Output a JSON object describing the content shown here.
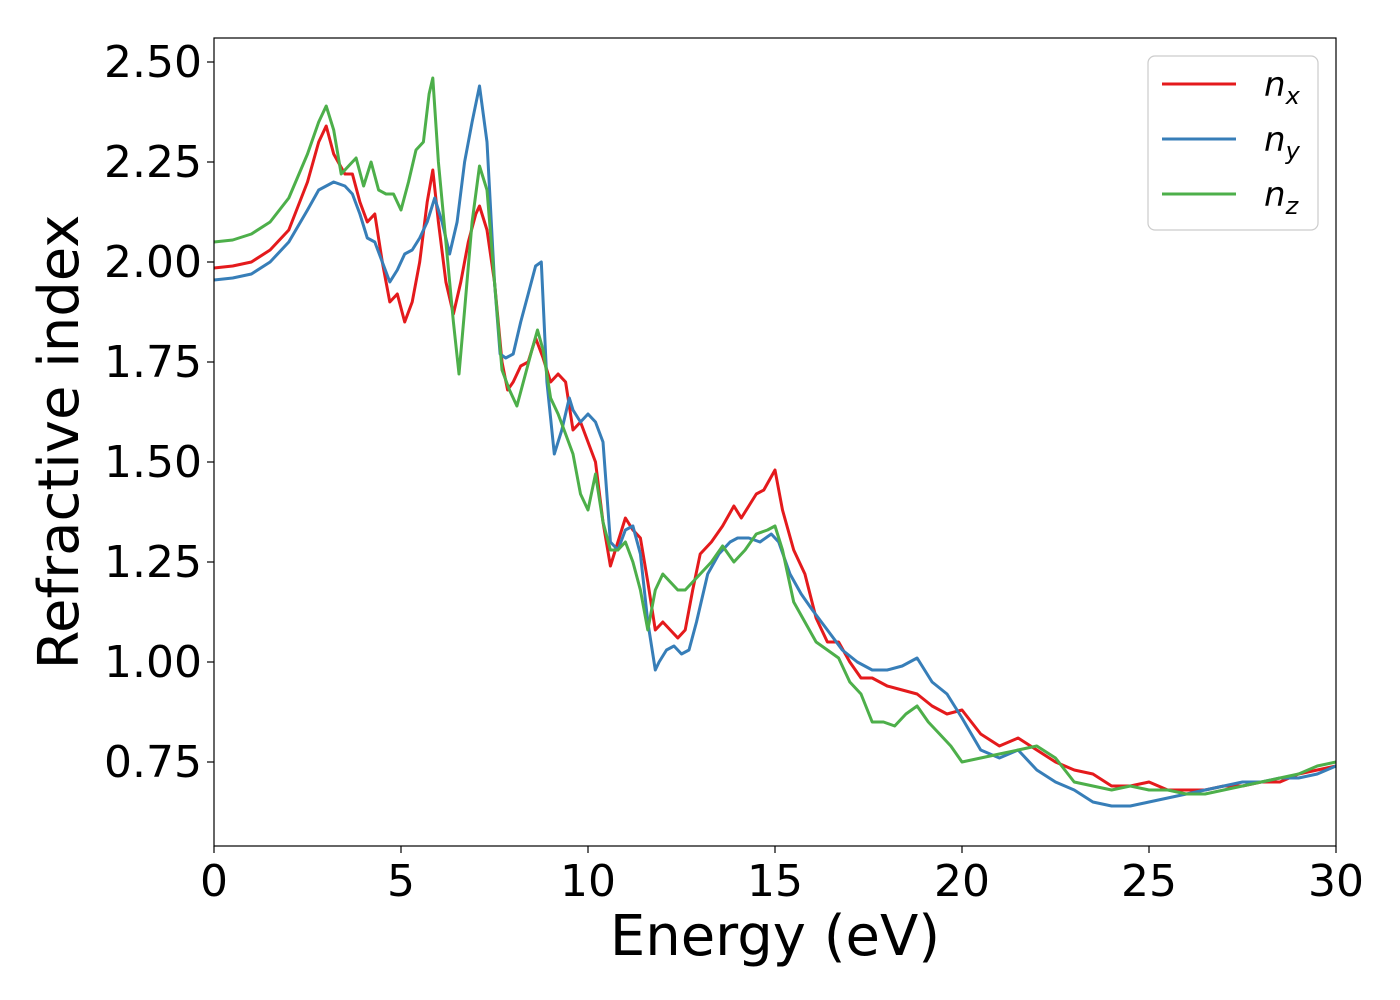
{
  "chart_data": {
    "type": "line",
    "xlabel": "Energy (eV)",
    "ylabel": "Refractive index",
    "xlim": [
      0,
      30
    ],
    "ylim": [
      0.54,
      2.56
    ],
    "xticks": [
      0,
      5,
      10,
      15,
      20,
      25,
      30
    ],
    "xtick_labels": [
      "0",
      "5",
      "10",
      "15",
      "20",
      "25",
      "30"
    ],
    "yticks": [
      0.75,
      1.0,
      1.25,
      1.5,
      1.75,
      2.0,
      2.25,
      2.5
    ],
    "ytick_labels": [
      "0.75",
      "1.00",
      "1.25",
      "1.50",
      "1.75",
      "2.00",
      "2.25",
      "2.50"
    ],
    "grid": false,
    "legend_position": "top-right",
    "series": [
      {
        "name": "n",
        "sub": "x",
        "color": "#e41a1c",
        "x": [
          0,
          0.5,
          1,
          1.5,
          2,
          2.5,
          2.8,
          3.0,
          3.2,
          3.5,
          3.7,
          3.9,
          4.1,
          4.3,
          4.5,
          4.7,
          4.9,
          5.1,
          5.3,
          5.5,
          5.7,
          5.85,
          6.0,
          6.2,
          6.4,
          6.6,
          6.8,
          7.0,
          7.1,
          7.3,
          7.5,
          7.7,
          7.85,
          8.0,
          8.2,
          8.4,
          8.6,
          8.8,
          9.0,
          9.2,
          9.4,
          9.6,
          9.8,
          10.0,
          10.2,
          10.4,
          10.6,
          10.8,
          11.0,
          11.2,
          11.4,
          11.6,
          11.8,
          12.0,
          12.2,
          12.4,
          12.6,
          12.8,
          13.0,
          13.3,
          13.6,
          13.9,
          14.1,
          14.3,
          14.5,
          14.7,
          15.0,
          15.2,
          15.5,
          15.8,
          16.1,
          16.4,
          16.7,
          17.0,
          17.3,
          17.6,
          18.0,
          18.4,
          18.8,
          19.2,
          19.6,
          20.0,
          20.5,
          21.0,
          21.5,
          22.0,
          22.5,
          23.0,
          23.5,
          24.0,
          24.5,
          25.0,
          25.5,
          26.0,
          26.5,
          27.0,
          27.5,
          28.0,
          28.5,
          29.0,
          29.5,
          30.0
        ],
        "y": [
          1.985,
          1.99,
          2.0,
          2.03,
          2.08,
          2.2,
          2.3,
          2.34,
          2.27,
          2.22,
          2.22,
          2.15,
          2.1,
          2.12,
          2.0,
          1.9,
          1.92,
          1.85,
          1.9,
          2.0,
          2.15,
          2.23,
          2.1,
          1.95,
          1.87,
          1.95,
          2.05,
          2.12,
          2.14,
          2.08,
          1.95,
          1.75,
          1.68,
          1.7,
          1.74,
          1.75,
          1.81,
          1.76,
          1.7,
          1.72,
          1.7,
          1.58,
          1.6,
          1.55,
          1.5,
          1.35,
          1.24,
          1.3,
          1.36,
          1.33,
          1.31,
          1.2,
          1.08,
          1.1,
          1.08,
          1.06,
          1.08,
          1.18,
          1.27,
          1.3,
          1.34,
          1.39,
          1.36,
          1.39,
          1.42,
          1.43,
          1.48,
          1.38,
          1.28,
          1.22,
          1.11,
          1.05,
          1.05,
          1.0,
          0.96,
          0.96,
          0.94,
          0.93,
          0.92,
          0.89,
          0.87,
          0.88,
          0.82,
          0.79,
          0.81,
          0.78,
          0.75,
          0.73,
          0.72,
          0.69,
          0.69,
          0.7,
          0.68,
          0.68,
          0.68,
          0.69,
          0.69,
          0.7,
          0.7,
          0.72,
          0.73,
          0.74
        ]
      },
      {
        "name": "n",
        "sub": "y",
        "color": "#377eb8",
        "x": [
          0,
          0.5,
          1,
          1.5,
          2,
          2.5,
          2.8,
          3.0,
          3.2,
          3.5,
          3.7,
          3.9,
          4.1,
          4.3,
          4.5,
          4.7,
          4.9,
          5.1,
          5.3,
          5.5,
          5.7,
          5.9,
          6.1,
          6.3,
          6.5,
          6.7,
          6.9,
          7.1,
          7.3,
          7.5,
          7.65,
          7.8,
          8.0,
          8.2,
          8.4,
          8.6,
          8.75,
          8.9,
          9.1,
          9.3,
          9.5,
          9.6,
          9.8,
          10.0,
          10.2,
          10.4,
          10.6,
          10.8,
          11.0,
          11.2,
          11.4,
          11.6,
          11.8,
          11.9,
          12.1,
          12.3,
          12.5,
          12.7,
          12.9,
          13.2,
          13.5,
          13.8,
          14.0,
          14.3,
          14.6,
          14.9,
          15.1,
          15.4,
          15.7,
          16.0,
          16.4,
          16.8,
          17.2,
          17.6,
          18.0,
          18.4,
          18.8,
          19.2,
          19.6,
          20.0,
          20.5,
          21.0,
          21.5,
          22.0,
          22.5,
          23.0,
          23.5,
          24.0,
          24.5,
          25.0,
          25.5,
          26.0,
          26.5,
          27.0,
          27.5,
          28.0,
          28.5,
          29.0,
          29.5,
          30.0
        ],
        "y": [
          1.955,
          1.96,
          1.97,
          2.0,
          2.05,
          2.13,
          2.18,
          2.19,
          2.2,
          2.19,
          2.17,
          2.12,
          2.06,
          2.05,
          2.0,
          1.95,
          1.98,
          2.02,
          2.03,
          2.06,
          2.1,
          2.16,
          2.1,
          2.02,
          2.1,
          2.25,
          2.35,
          2.44,
          2.3,
          1.95,
          1.77,
          1.76,
          1.77,
          1.85,
          1.92,
          1.99,
          2.0,
          1.7,
          1.52,
          1.58,
          1.66,
          1.63,
          1.6,
          1.62,
          1.6,
          1.55,
          1.3,
          1.28,
          1.33,
          1.34,
          1.27,
          1.1,
          0.98,
          1.0,
          1.03,
          1.04,
          1.02,
          1.03,
          1.1,
          1.22,
          1.27,
          1.3,
          1.31,
          1.31,
          1.3,
          1.32,
          1.3,
          1.22,
          1.17,
          1.13,
          1.08,
          1.03,
          1.0,
          0.98,
          0.98,
          0.99,
          1.01,
          0.95,
          0.92,
          0.86,
          0.78,
          0.76,
          0.78,
          0.73,
          0.7,
          0.68,
          0.65,
          0.64,
          0.64,
          0.65,
          0.66,
          0.67,
          0.68,
          0.69,
          0.7,
          0.7,
          0.71,
          0.71,
          0.72,
          0.74
        ]
      },
      {
        "name": "n",
        "sub": "z",
        "color": "#4daf4a",
        "x": [
          0,
          0.5,
          1,
          1.5,
          2,
          2.5,
          2.8,
          3.0,
          3.2,
          3.4,
          3.6,
          3.8,
          4.0,
          4.2,
          4.4,
          4.6,
          4.8,
          5.0,
          5.2,
          5.4,
          5.6,
          5.75,
          5.85,
          6.0,
          6.2,
          6.4,
          6.55,
          6.7,
          6.9,
          7.1,
          7.3,
          7.5,
          7.7,
          7.9,
          8.1,
          8.3,
          8.5,
          8.65,
          8.8,
          9.0,
          9.2,
          9.4,
          9.6,
          9.8,
          10.0,
          10.2,
          10.4,
          10.6,
          10.8,
          11.0,
          11.2,
          11.4,
          11.6,
          11.8,
          12.0,
          12.2,
          12.4,
          12.6,
          12.8,
          13.0,
          13.3,
          13.6,
          13.9,
          14.2,
          14.5,
          14.8,
          15.0,
          15.2,
          15.5,
          15.8,
          16.1,
          16.4,
          16.7,
          17.0,
          17.3,
          17.6,
          17.9,
          18.2,
          18.5,
          18.8,
          19.1,
          19.4,
          19.7,
          20.0,
          20.5,
          21.0,
          21.5,
          22.0,
          22.5,
          23.0,
          23.5,
          24.0,
          24.5,
          25.0,
          25.5,
          26.0,
          26.5,
          27.0,
          27.5,
          28.0,
          28.5,
          29.0,
          29.5,
          30.0
        ],
        "y": [
          2.05,
          2.055,
          2.07,
          2.1,
          2.16,
          2.27,
          2.35,
          2.39,
          2.33,
          2.22,
          2.24,
          2.26,
          2.19,
          2.25,
          2.18,
          2.17,
          2.17,
          2.13,
          2.2,
          2.28,
          2.3,
          2.42,
          2.46,
          2.25,
          2.05,
          1.85,
          1.72,
          1.88,
          2.1,
          2.24,
          2.18,
          1.95,
          1.73,
          1.68,
          1.64,
          1.71,
          1.78,
          1.83,
          1.78,
          1.66,
          1.62,
          1.57,
          1.52,
          1.42,
          1.38,
          1.47,
          1.35,
          1.28,
          1.28,
          1.3,
          1.25,
          1.18,
          1.08,
          1.18,
          1.22,
          1.2,
          1.18,
          1.18,
          1.2,
          1.22,
          1.25,
          1.29,
          1.25,
          1.28,
          1.32,
          1.33,
          1.34,
          1.28,
          1.15,
          1.1,
          1.05,
          1.03,
          1.01,
          0.95,
          0.92,
          0.85,
          0.85,
          0.84,
          0.87,
          0.89,
          0.85,
          0.82,
          0.79,
          0.75,
          0.76,
          0.77,
          0.78,
          0.79,
          0.76,
          0.7,
          0.69,
          0.68,
          0.69,
          0.68,
          0.68,
          0.67,
          0.67,
          0.68,
          0.69,
          0.7,
          0.71,
          0.72,
          0.74,
          0.75
        ]
      }
    ]
  }
}
